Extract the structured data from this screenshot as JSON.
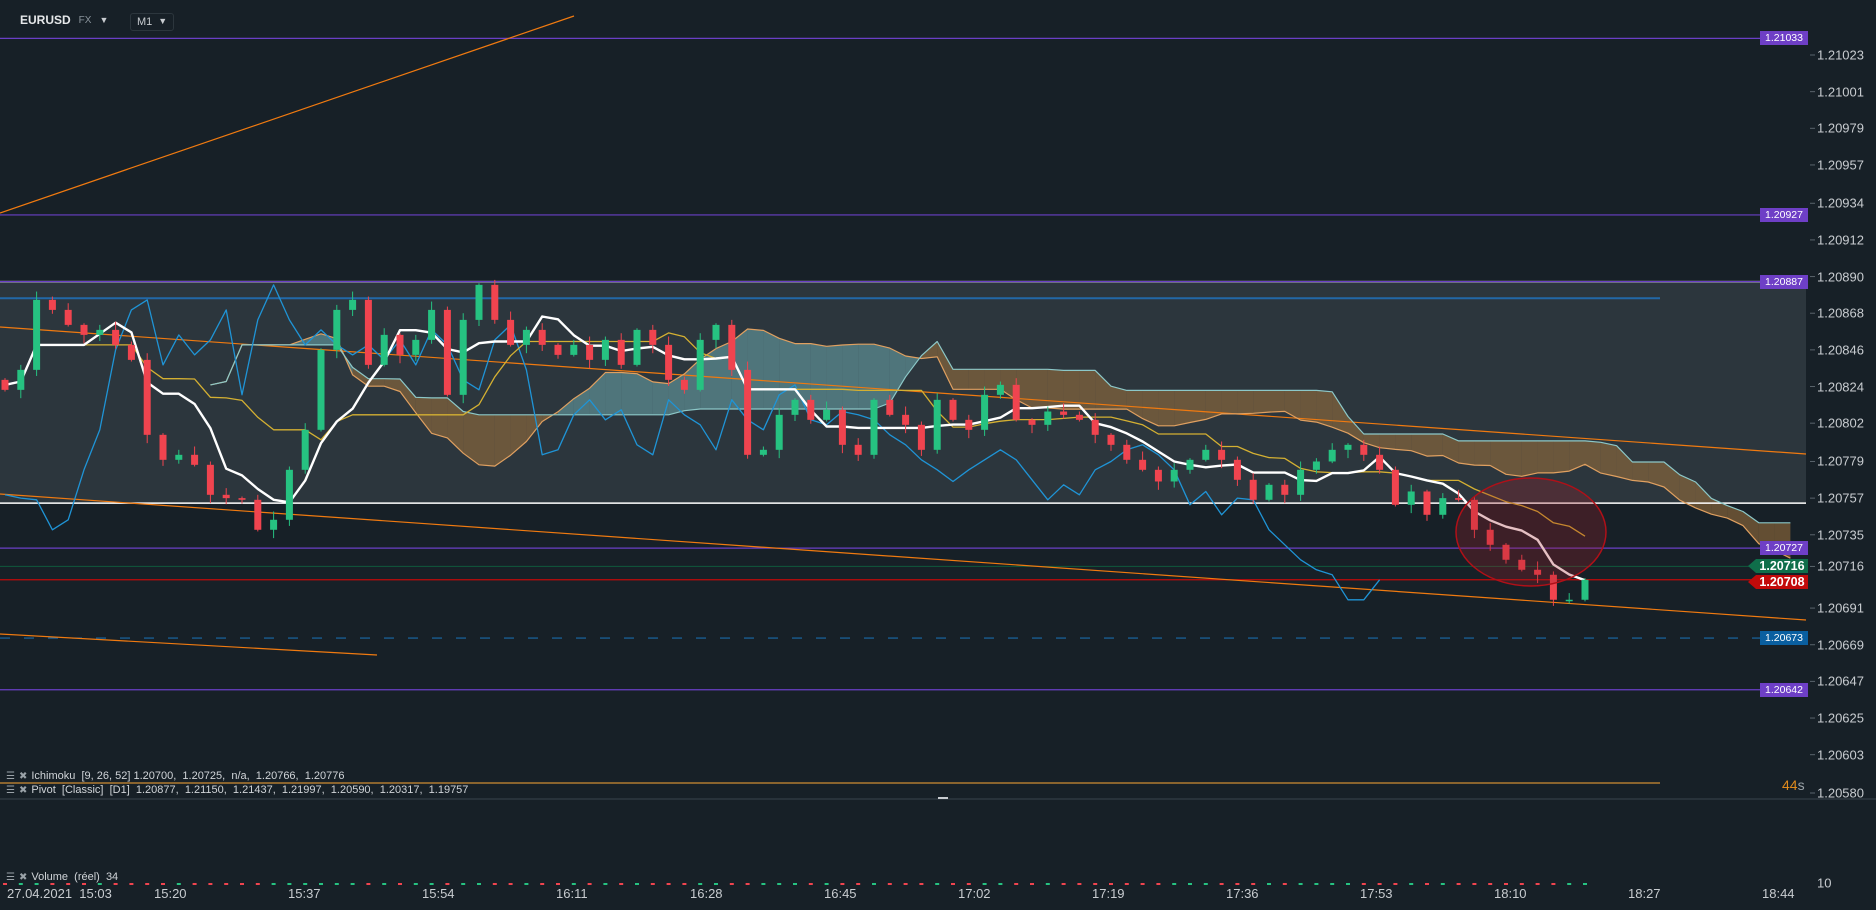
{
  "header": {
    "symbol": "EURUSD",
    "market": "FX",
    "timeframe": "M1"
  },
  "colors": {
    "bg": "#172027",
    "box": "#2c363d",
    "bull": "#26c281",
    "bear": "#f0444f",
    "tenkan": "#ffffff",
    "kijun": "#d4b032",
    "chikou": "#1f94d6",
    "pivot_tag": "#6e3fc6",
    "s_tag": "#0a5fa0",
    "bid": "#0f6e4a",
    "ask": "#c20a0a",
    "trend": "#f07a10"
  },
  "price_axis": {
    "ticks": [
      "1.21023",
      "1.21001",
      "1.20979",
      "1.20957",
      "1.20934",
      "1.20912",
      "1.20890",
      "1.20868",
      "1.20846",
      "1.20824",
      "1.20802",
      "1.20779",
      "1.20757",
      "1.20735",
      "1.20716",
      "1.20691",
      "1.20669",
      "1.20647",
      "1.20625",
      "1.20603",
      "1.20580"
    ],
    "max": 1.21023,
    "min": 1.2058
  },
  "levels": [
    {
      "label": "1.21033",
      "price": 1.21033,
      "kind": "pivot"
    },
    {
      "label": "1.20927",
      "price": 1.20927,
      "kind": "pivot"
    },
    {
      "label": "1.20887",
      "price": 1.20887,
      "kind": "pivot"
    },
    {
      "label": "1.20727",
      "price": 1.20727,
      "kind": "pivot"
    },
    {
      "label": "1.20673",
      "price": 1.20673,
      "kind": "support"
    },
    {
      "label": "1.20642",
      "price": 1.20642,
      "kind": "pivot"
    }
  ],
  "bid": {
    "label": "1.20716",
    "price": 1.20716
  },
  "ask": {
    "label": "1.20708",
    "price": 1.20708
  },
  "pivot_price": 1.20877,
  "box": {
    "top": 1.20887,
    "bottom": 1.20754
  },
  "countdown": {
    "value": "44",
    "unit": "s"
  },
  "indicators": [
    {
      "name": "Ichimoku",
      "text": "Ichimoku  [9, 26, 52] 1.20700,  1.20725,  n/a,  1.20766,  1.20776"
    },
    {
      "name": "Pivot",
      "text": "Pivot  [Classic]  [D1]  1.20877,  1.21150,  1.21437,  1.21997,  1.20590,  1.20317,  1.19757"
    },
    {
      "name": "Volume",
      "text": "Volume  (réel)  34"
    }
  ],
  "volume_axis": "10",
  "time_axis": {
    "first": "27.04.2021  15:03",
    "labels": [
      "15:20",
      "15:37",
      "15:54",
      "16:11",
      "16:28",
      "16:45",
      "17:02",
      "17:19",
      "17:36",
      "17:53",
      "18:10",
      "18:27",
      "18:44"
    ]
  },
  "chart_data": {
    "type": "candlestick",
    "interval_note": "",
    "closes": [
      1.20822,
      1.20834,
      1.20876,
      1.2087,
      1.20861,
      1.20855,
      1.20858,
      1.20849,
      1.2084,
      1.20795,
      1.2078,
      1.20783,
      1.20777,
      1.20759,
      1.20757,
      1.20756,
      1.20738,
      1.20744,
      1.20774,
      1.20798,
      1.20846,
      1.2087,
      1.20876,
      1.20837,
      1.20855,
      1.20843,
      1.20852,
      1.2087,
      1.20819,
      1.20864,
      1.20885,
      1.20864,
      1.20849,
      1.20858,
      1.20849,
      1.20843,
      1.20849,
      1.2084,
      1.20852,
      1.20837,
      1.20858,
      1.20849,
      1.20828,
      1.20822,
      1.20852,
      1.20861,
      1.20834,
      1.20783,
      1.20786,
      1.20807,
      1.20816,
      1.20804,
      1.2081,
      1.20789,
      1.20783,
      1.20816,
      1.20807,
      1.20801,
      1.20786,
      1.20816,
      1.20804,
      1.20798,
      1.20819,
      1.20825,
      1.20804,
      1.20801,
      1.20809,
      1.20807,
      1.20804,
      1.20795,
      1.20789,
      1.2078,
      1.20774,
      1.20767,
      1.20774,
      1.2078,
      1.20786,
      1.2078,
      1.20768,
      1.20756,
      1.20765,
      1.20759,
      1.20774,
      1.20779,
      1.20786,
      1.20789,
      1.20783,
      1.20774,
      1.20753,
      1.20761,
      1.20747,
      1.20757,
      1.20756,
      1.20738,
      1.20729,
      1.2072,
      1.20714,
      1.20711,
      1.20696,
      1.20696,
      1.20708
    ]
  }
}
